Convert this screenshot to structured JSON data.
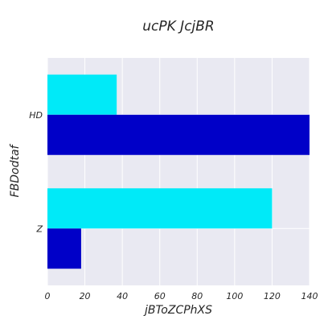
{
  "chart_data": {
    "type": "bar",
    "orientation": "horizontal",
    "title": "ucPK JcjBR",
    "xlabel": "jBToZCPhXS",
    "ylabel": "FBDodtaf",
    "categories": [
      "HD",
      "Z"
    ],
    "series": [
      {
        "values": [
          37,
          120
        ],
        "color": "#00eaf8"
      },
      {
        "values": [
          140,
          18
        ],
        "color": "#0000c8"
      }
    ],
    "xlim": [
      0,
      140
    ],
    "xticks": [
      0,
      20,
      40,
      60,
      80,
      100,
      120,
      140
    ],
    "grid": true,
    "background": "#e9e9f2"
  }
}
